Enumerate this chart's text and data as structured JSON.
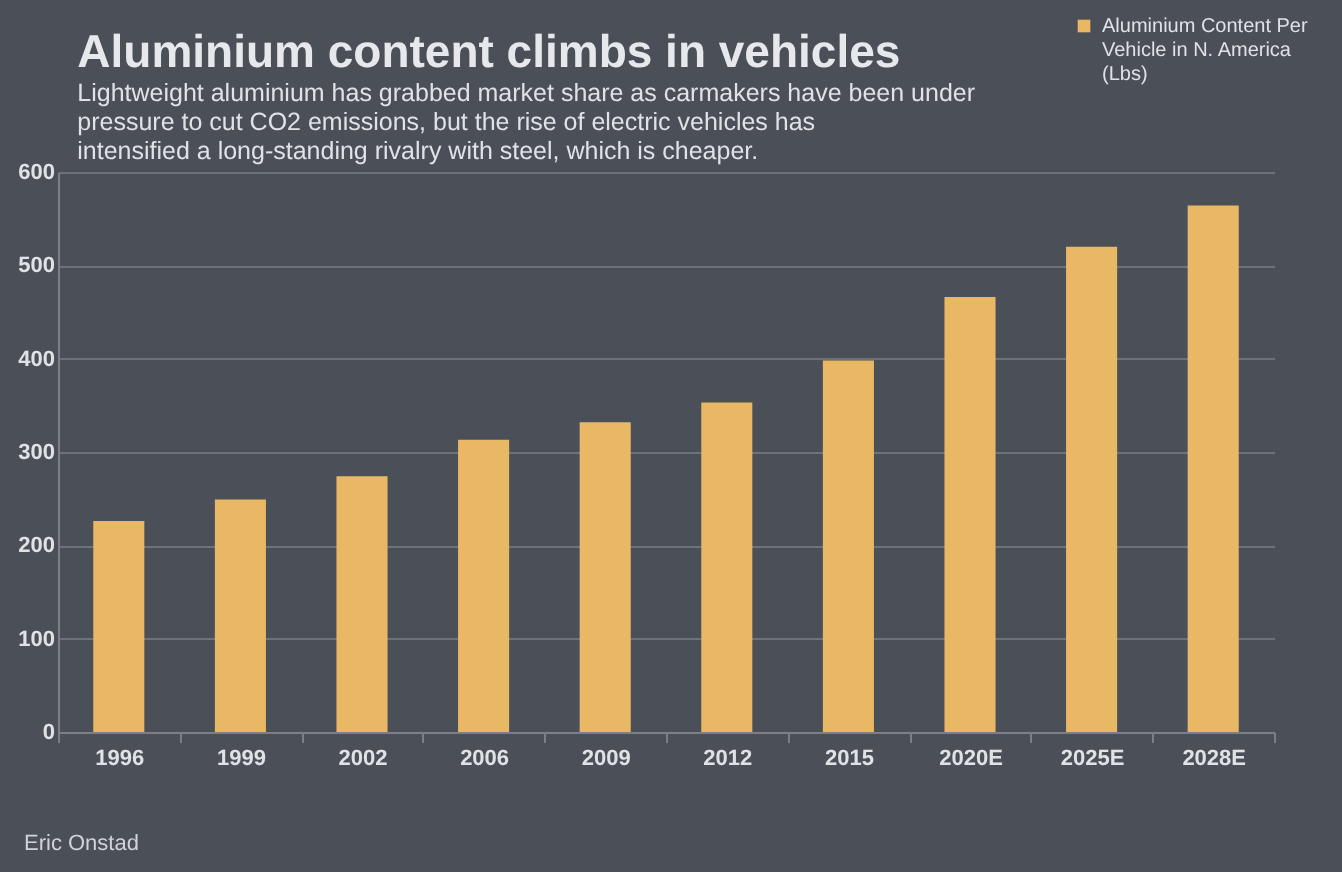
{
  "chart_data": {
    "type": "bar",
    "title": "Aluminium content climbs in vehicles",
    "subtitle": "Lightweight aluminium has grabbed market share as carmakers have been under pressure to cut CO2 emissions, but the rise of electric vehicles has intensified a long-standing rivalry with steel, which is cheaper.",
    "categories": [
      "1996",
      "1999",
      "2002",
      "2006",
      "2009",
      "2012",
      "2015",
      "2020E",
      "2025E",
      "2028E"
    ],
    "series": [
      {
        "name": "Aluminium Content Per Vehicle in N. America (Lbs)",
        "color": "#e8b865",
        "values": [
          226,
          249,
          274,
          313,
          332,
          353,
          398,
          466,
          520,
          564
        ]
      }
    ],
    "ylim": [
      0,
      600
    ],
    "yticks": [
      0,
      100,
      200,
      300,
      400,
      500,
      600
    ],
    "grid": "y",
    "legend": "top right",
    "annotations": [
      "Eric Onstad"
    ]
  }
}
